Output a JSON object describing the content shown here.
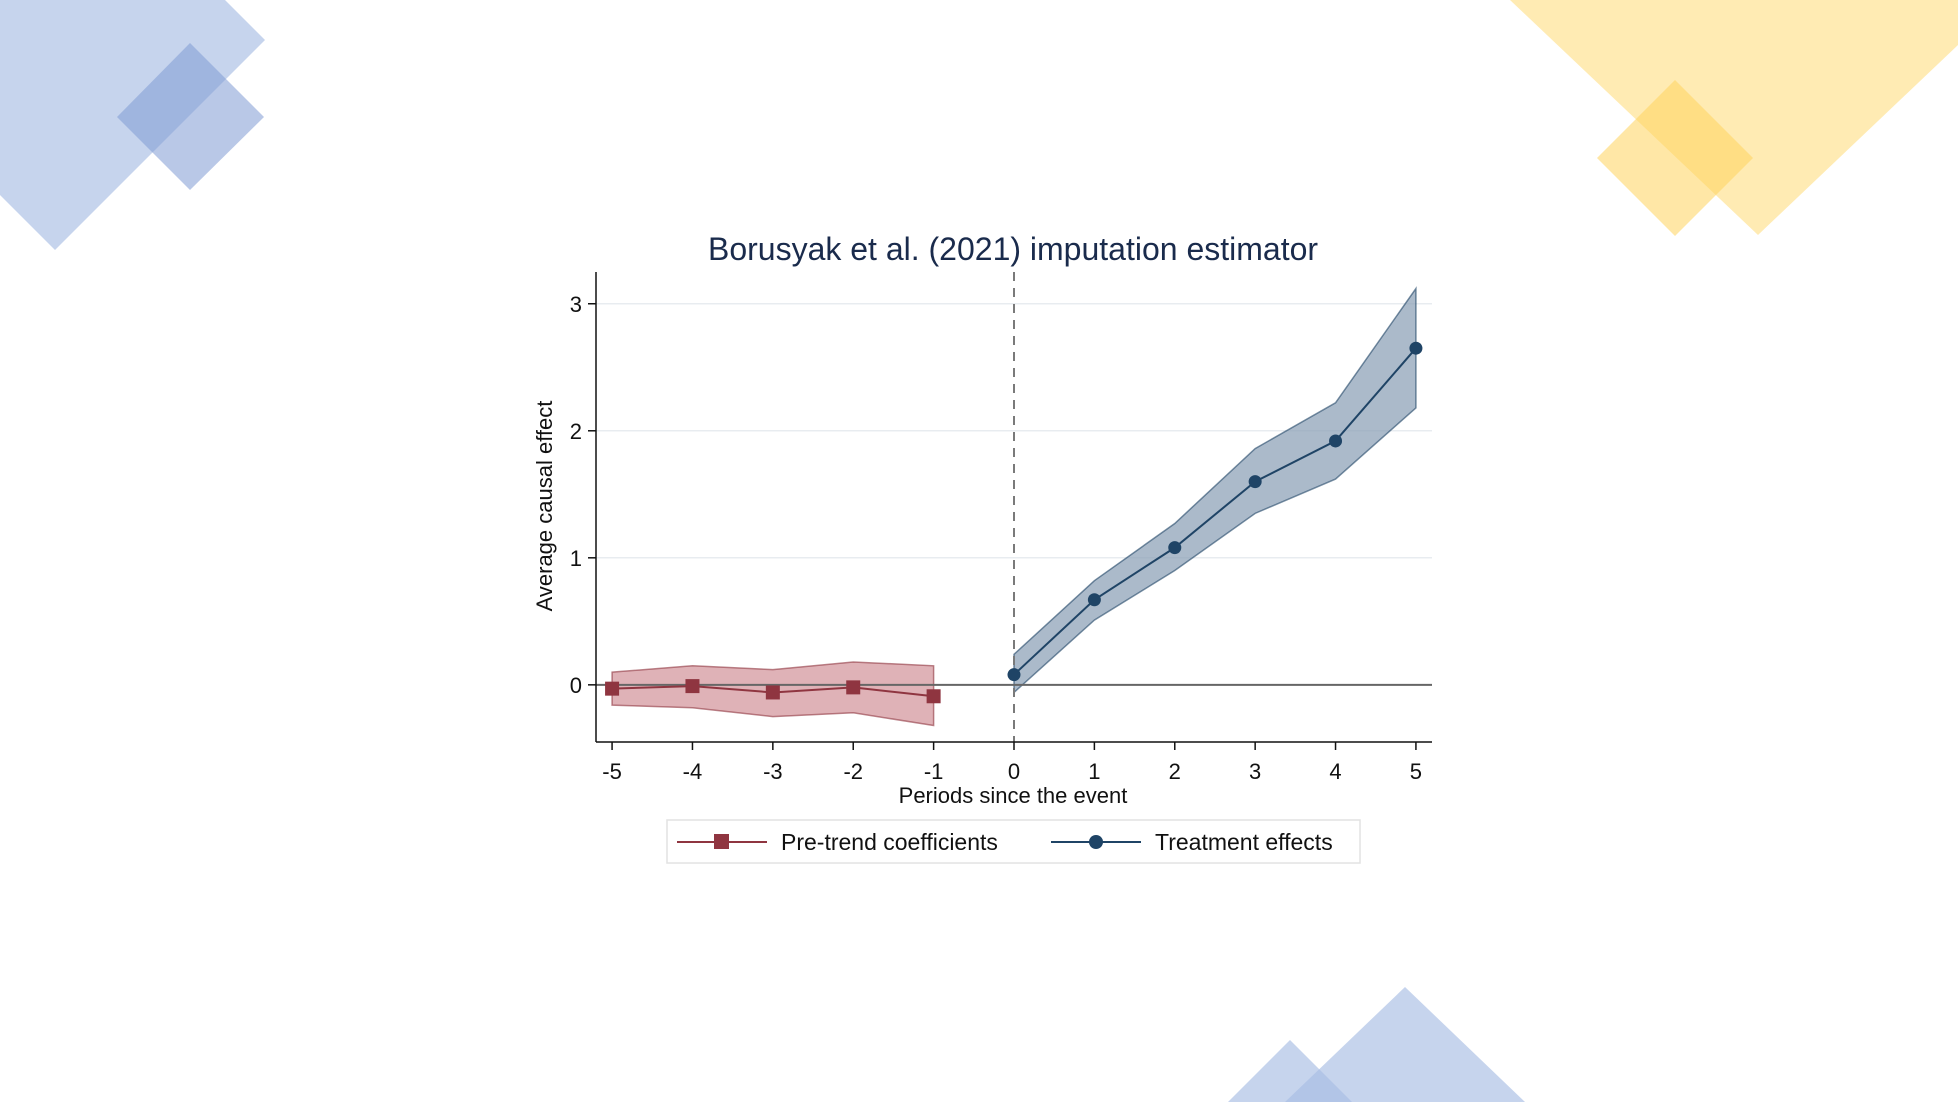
{
  "colors": {
    "background": "#ffffff",
    "deco_blue": "#a8bde3",
    "deco_yellow": "#ffe08a",
    "pretrend": "#8f3540",
    "pretrend_band": "#d9a5aa",
    "treatment": "#1f4466",
    "treatment_band": "#8fa3b8",
    "grid": "#e8ecf0",
    "zero_line": "#666666",
    "event_line": "#7a7a7a"
  },
  "chart_data": {
    "type": "line",
    "title": "Borusyak et al. (2021) imputation estimator",
    "xlabel": "Periods since the event",
    "ylabel": "Average causal effect",
    "xlim": [
      -5.2,
      5.2
    ],
    "ylim": [
      -0.45,
      3.25
    ],
    "x_ticks": [
      -5,
      -4,
      -3,
      -2,
      -1,
      0,
      1,
      2,
      3,
      4,
      5
    ],
    "y_ticks": [
      0,
      1,
      2,
      3
    ],
    "grid": true,
    "reference_lines": {
      "horizontal_at": 0,
      "vertical_dashed_at": 0
    },
    "legend_position": "bottom",
    "series": [
      {
        "name": "Pre-trend coefficients",
        "marker": "square",
        "x": [
          -5,
          -4,
          -3,
          -2,
          -1
        ],
        "values": [
          -0.03,
          -0.01,
          -0.06,
          -0.02,
          -0.09
        ],
        "ci_lower": [
          -0.16,
          -0.18,
          -0.25,
          -0.22,
          -0.32
        ],
        "ci_upper": [
          0.1,
          0.15,
          0.12,
          0.18,
          0.15
        ]
      },
      {
        "name": "Treatment effects",
        "marker": "circle",
        "x": [
          0,
          1,
          2,
          3,
          4,
          5
        ],
        "values": [
          0.08,
          0.67,
          1.08,
          1.6,
          1.92,
          2.65
        ],
        "ci_lower": [
          -0.06,
          0.51,
          0.9,
          1.35,
          1.62,
          2.18
        ],
        "ci_upper": [
          0.24,
          0.82,
          1.27,
          1.86,
          2.22,
          3.12
        ]
      }
    ]
  }
}
